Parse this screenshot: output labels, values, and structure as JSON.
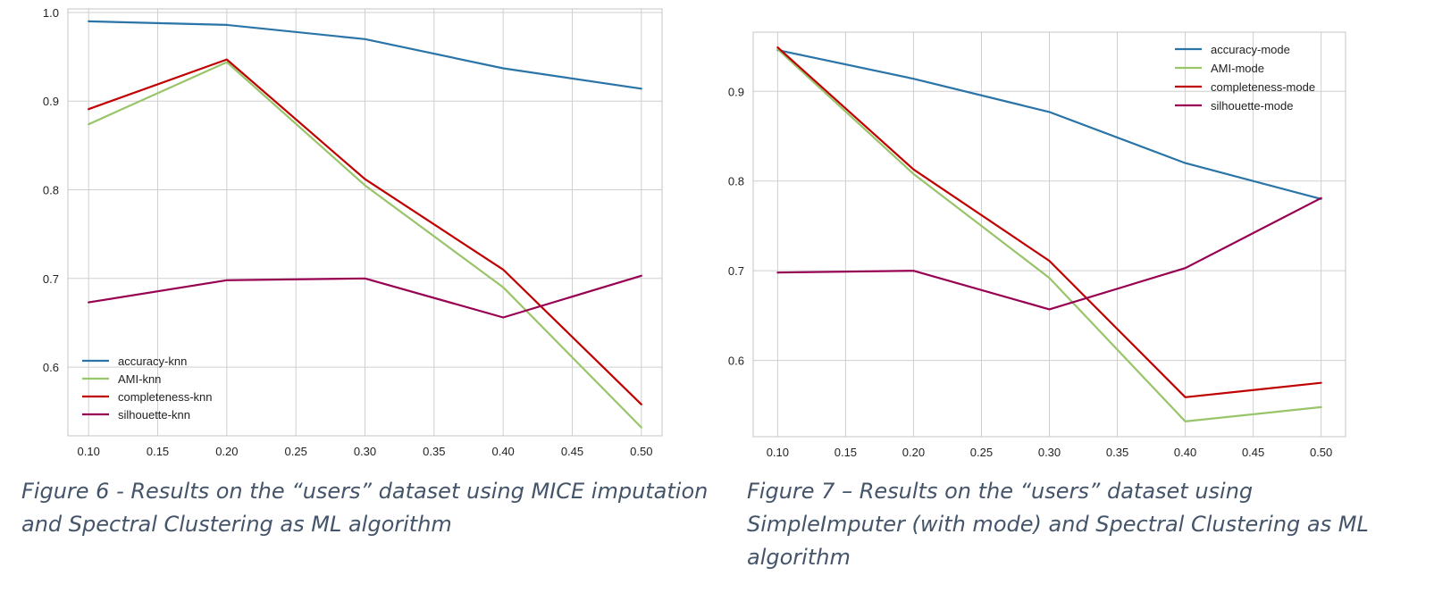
{
  "chart_data": [
    {
      "type": "line",
      "x": [
        0.1,
        0.2,
        0.3,
        0.4,
        0.5
      ],
      "x_ticks": [
        "0.10",
        "0.15",
        "0.20",
        "0.25",
        "0.30",
        "0.35",
        "0.40",
        "0.45",
        "0.50"
      ],
      "y_ticks": [
        "0.6",
        "0.7",
        "0.8",
        "0.9",
        "1.0"
      ],
      "xlim": [
        0.085,
        0.515
      ],
      "ylim": [
        0.5225,
        1.004
      ],
      "grid": true,
      "legend_position": "lower-left",
      "series": [
        {
          "name": "accuracy-knn",
          "color": "#2a74a8",
          "values": [
            0.99,
            0.986,
            0.97,
            0.937,
            0.914
          ]
        },
        {
          "name": "AMI-knn",
          "color": "#98c46a",
          "values": [
            0.874,
            0.944,
            0.805,
            0.69,
            0.532
          ]
        },
        {
          "name": "completeness-knn",
          "color": "#c00000",
          "values": [
            0.891,
            0.947,
            0.812,
            0.71,
            0.558
          ]
        },
        {
          "name": "silhouette-knn",
          "color": "#980051",
          "values": [
            0.673,
            0.698,
            0.7,
            0.656,
            0.703
          ]
        }
      ],
      "caption": "Figure 6 - Results on the “users” dataset using MICE imputation and Spectral Clustering as ML algorithm"
    },
    {
      "type": "line",
      "x": [
        0.1,
        0.2,
        0.3,
        0.4,
        0.5
      ],
      "x_ticks": [
        "0.10",
        "0.15",
        "0.20",
        "0.25",
        "0.30",
        "0.35",
        "0.40",
        "0.45",
        "0.50"
      ],
      "y_ticks": [
        "0.6",
        "0.7",
        "0.8",
        "0.9"
      ],
      "xlim": [
        0.082,
        0.518
      ],
      "ylim": [
        0.515,
        0.966
      ],
      "grid": true,
      "legend_position": "top-right",
      "series": [
        {
          "name": "accuracy-mode",
          "color": "#2a74a8",
          "values": [
            0.946,
            0.914,
            0.877,
            0.82,
            0.78
          ]
        },
        {
          "name": "AMI-mode",
          "color": "#98c46a",
          "values": [
            0.947,
            0.808,
            0.692,
            0.532,
            0.548
          ]
        },
        {
          "name": "completeness-mode",
          "color": "#c00000",
          "values": [
            0.949,
            0.813,
            0.711,
            0.559,
            0.575
          ]
        },
        {
          "name": "silhouette-mode",
          "color": "#980051",
          "values": [
            0.698,
            0.7,
            0.657,
            0.703,
            0.781
          ]
        }
      ],
      "caption": "Figure 7 – Results on the “users” dataset using SimpleImputer (with mode) and Spectral Clustering as ML algorithm"
    }
  ]
}
